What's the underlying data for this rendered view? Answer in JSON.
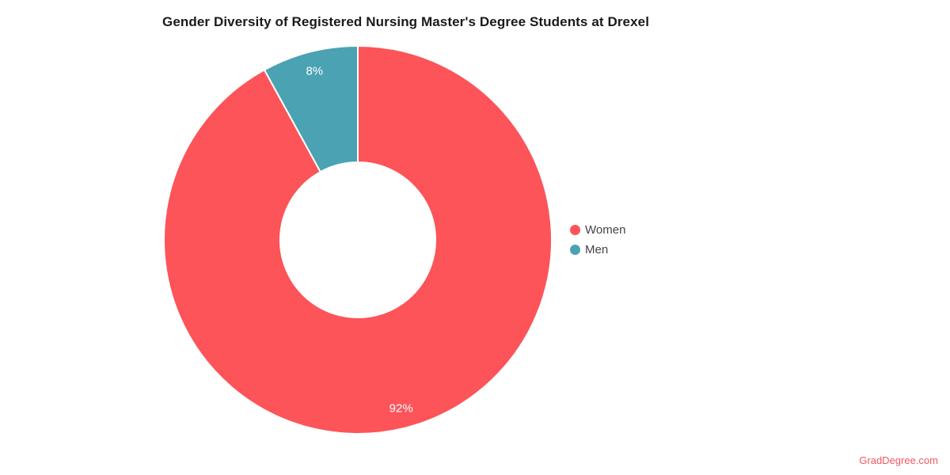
{
  "page": {
    "background": "#ffffff",
    "title_color": "#1a1a1a",
    "legend_text_color": "#444444"
  },
  "chart_data": {
    "type": "pie",
    "title": "Gender Diversity of Registered Nursing Master's Degree Students at Drexel",
    "labels": [
      "Women",
      "Men"
    ],
    "values": [
      92,
      8
    ],
    "slice_labels": [
      "92%",
      "8%"
    ],
    "colors": [
      "#FC5458",
      "#4AA2B2"
    ],
    "hole": 0.4,
    "direction": "clockwise",
    "start_angle_deg": 0,
    "legend_position": "right",
    "slice_label_color": "#ffffff",
    "slice_border_color": "#ffffff"
  },
  "watermark": {
    "text": "GradDegree.com",
    "color": "#F2595F"
  }
}
